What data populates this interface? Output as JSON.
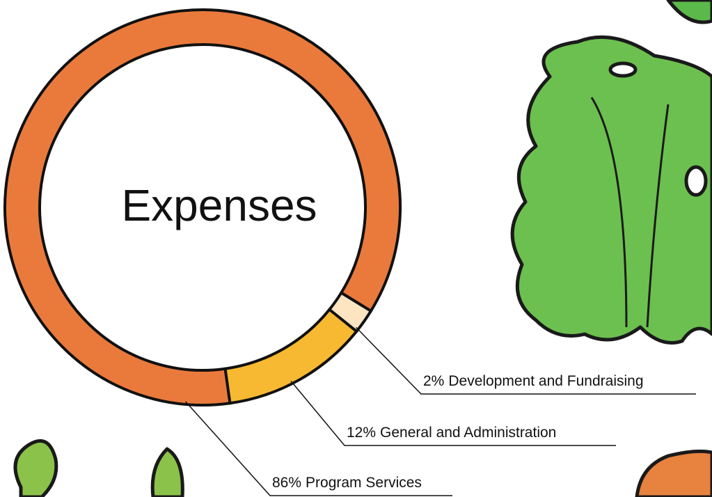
{
  "chart_data": {
    "type": "donut",
    "title": "Expenses",
    "categories": [
      "Program Services",
      "General and Administration",
      "Development and Fundraising"
    ],
    "values": [
      86,
      12,
      2
    ],
    "value_labels": [
      "86%",
      "12%",
      "2%"
    ],
    "colors": [
      "#ea7a3c",
      "#f8b932",
      "#fde5c2"
    ]
  }
}
